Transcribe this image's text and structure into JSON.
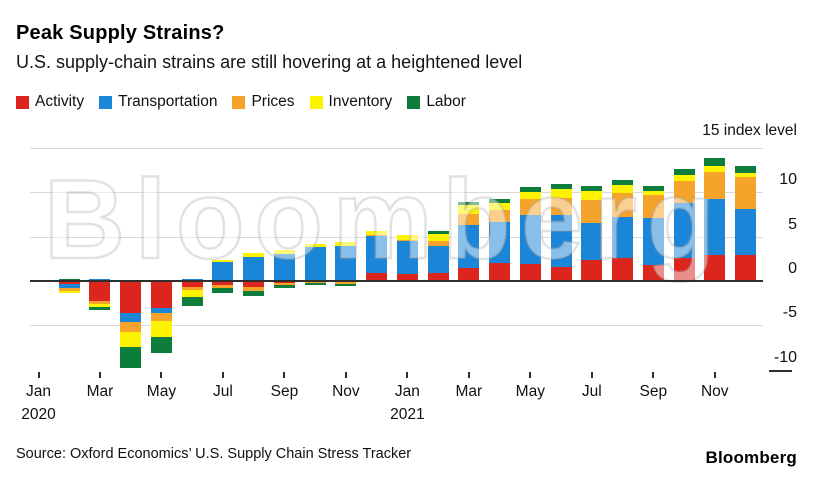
{
  "chart_data": {
    "type": "stacked-bar",
    "title": "Peak Supply Strains?",
    "subtitle": "U.S. supply-chain strains are still hovering at a heightened level",
    "watermark": "Bloomberg",
    "source": "Source: Oxford Economics’ U.S. Supply Chain Stress Tracker",
    "brand": "Bloomberg",
    "y_axis": {
      "unit_label": "15 index level",
      "max": 15,
      "min": -10,
      "gridline_values": [
        15,
        10,
        5,
        -5
      ],
      "tick_labels": [
        {
          "value": 10,
          "label": "10"
        },
        {
          "value": 5,
          "label": "5"
        },
        {
          "value": 0,
          "label": "0"
        },
        {
          "value": -5,
          "label": "-5"
        },
        {
          "value": -10,
          "label": "-10"
        }
      ]
    },
    "categories": [
      "Jan 2020",
      "Feb 2020",
      "Mar 2020",
      "Apr 2020",
      "May 2020",
      "Jun 2020",
      "Jul 2020",
      "Aug 2020",
      "Sep 2020",
      "Oct 2020",
      "Nov 2020",
      "Dec 2020",
      "Jan 2021",
      "Feb 2021",
      "Mar 2021",
      "Apr 2021",
      "May 2021",
      "Jun 2021",
      "Jul 2021",
      "Aug 2021",
      "Sep 2021",
      "Oct 2021",
      "Nov 2021",
      "Dec 2021"
    ],
    "x_ticks": [
      {
        "month_index": 0,
        "lines": [
          "Jan",
          "2020"
        ]
      },
      {
        "month_index": 2,
        "lines": [
          "Mar"
        ]
      },
      {
        "month_index": 4,
        "lines": [
          "May"
        ]
      },
      {
        "month_index": 6,
        "lines": [
          "Jul"
        ]
      },
      {
        "month_index": 8,
        "lines": [
          "Sep"
        ]
      },
      {
        "month_index": 10,
        "lines": [
          "Nov"
        ]
      },
      {
        "month_index": 12,
        "lines": [
          "Jan",
          "2021"
        ]
      },
      {
        "month_index": 14,
        "lines": [
          "Mar"
        ]
      },
      {
        "month_index": 16,
        "lines": [
          "May"
        ]
      },
      {
        "month_index": 18,
        "lines": [
          "Jul"
        ]
      },
      {
        "month_index": 20,
        "lines": [
          "Sep"
        ]
      },
      {
        "month_index": 22,
        "lines": [
          "Nov"
        ]
      }
    ],
    "series": [
      {
        "name": "Activity",
        "color": "#dc261d",
        "values": [
          0,
          -0.35,
          -2.3,
          -3.6,
          -3.1,
          -0.7,
          -0.5,
          -0.7,
          -0.25,
          -0.1,
          -0.15,
          0.85,
          0.8,
          0.9,
          1.5,
          2.0,
          1.9,
          1.6,
          2.35,
          2.55,
          1.8,
          2.55,
          2.95,
          2.95
        ]
      },
      {
        "name": "Transportation",
        "color": "#1b85d8",
        "values": [
          0,
          -0.4,
          0.25,
          -1.0,
          -0.55,
          0.2,
          2.1,
          2.7,
          3.1,
          3.8,
          3.95,
          4.25,
          3.7,
          3.0,
          4.8,
          4.6,
          5.5,
          5.8,
          4.2,
          4.7,
          5.25,
          6.2,
          6.3,
          5.15
        ]
      },
      {
        "name": "Prices",
        "color": "#f5a32b",
        "values": [
          0,
          -0.35,
          -0.25,
          -1.1,
          -0.85,
          -0.3,
          -0.25,
          -0.4,
          -0.25,
          -0.1,
          -0.2,
          0.1,
          0.1,
          0.65,
          1.3,
          1.4,
          1.8,
          2.0,
          2.55,
          2.65,
          2.7,
          2.55,
          3.0,
          3.6
        ]
      },
      {
        "name": "Inventory",
        "color": "#fdf200",
        "values": [
          0,
          -0.2,
          -0.35,
          -1.7,
          -1.8,
          -0.8,
          0.25,
          0.45,
          0.35,
          0.35,
          0.4,
          0.45,
          0.6,
          0.7,
          0.95,
          0.75,
          0.8,
          1.0,
          1.05,
          0.95,
          0.4,
          0.65,
          0.7,
          0.5
        ]
      },
      {
        "name": "Labor",
        "color": "#0c7d3b",
        "values": [
          0,
          0.25,
          -0.4,
          -2.4,
          -1.85,
          -1.0,
          -0.65,
          -0.55,
          -0.25,
          -0.3,
          -0.2,
          0,
          0,
          0.4,
          0.4,
          0.45,
          0.55,
          0.55,
          0.55,
          0.55,
          0.55,
          0.65,
          0.95,
          0.75
        ]
      }
    ],
    "colors": {
      "axis": "#2e2e2e",
      "gridline": "#d9d9d9",
      "text": "#111111",
      "background": "#ffffff"
    }
  }
}
